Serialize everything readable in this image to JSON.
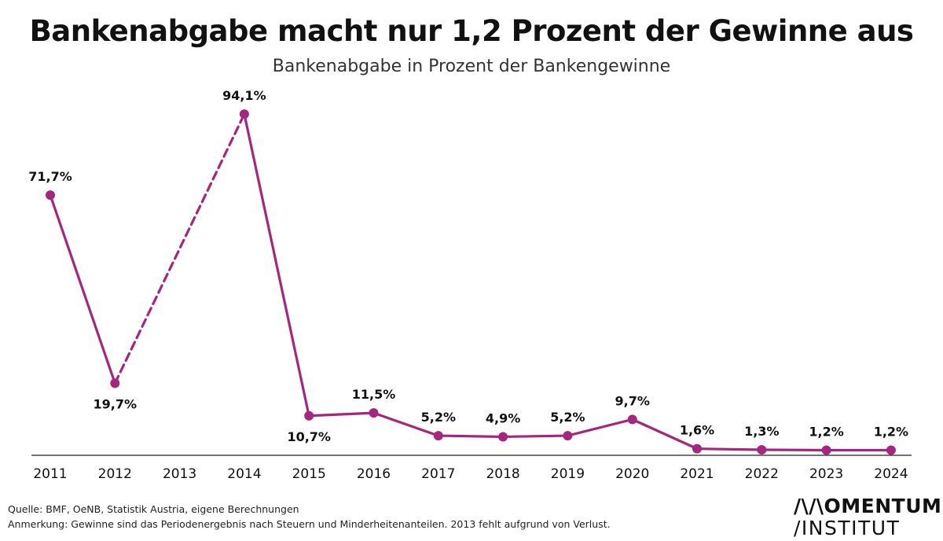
{
  "header": {
    "title": "Bankenabgabe macht nur 1,2 Prozent der Gewinne aus",
    "subtitle": "Bankenabgabe in Prozent der Bankengewinne"
  },
  "footer": {
    "source": "Quelle: BMF, OeNB, Statistik Austria, eigene Berechnungen",
    "note": "Anmerkung: Gewinne sind das Periodenergebnis nach Steuern und Minderheitenanteilen. 2013 fehlt aufgrund von Verlust.",
    "logo_line1": "/\\/\\OMENTUM",
    "logo_line2": "/INSTITUT"
  },
  "chart_data": {
    "type": "line",
    "x": [
      "2011",
      "2012",
      "2013",
      "2014",
      "2015",
      "2016",
      "2017",
      "2018",
      "2019",
      "2020",
      "2021",
      "2022",
      "2023",
      "2024"
    ],
    "series": [
      {
        "values": [
          71.7,
          19.7,
          null,
          94.1,
          10.7,
          11.5,
          5.2,
          4.9,
          5.2,
          9.7,
          1.6,
          1.3,
          1.2,
          1.2
        ],
        "labels": [
          "71,7%",
          "19,7%",
          "",
          "94,1%",
          "10,7%",
          "11,5%",
          "5,2%",
          "4,9%",
          "5,2%",
          "9,7%",
          "1,6%",
          "1,3%",
          "1,2%",
          "1,2%"
        ],
        "color": "#a5267f",
        "gap_bridge": {
          "from": "2012",
          "to": "2014",
          "style": "dashed"
        }
      }
    ],
    "ylim": [
      0,
      100
    ],
    "grid": false,
    "legend": false,
    "xlabel": "",
    "ylabel": ""
  }
}
